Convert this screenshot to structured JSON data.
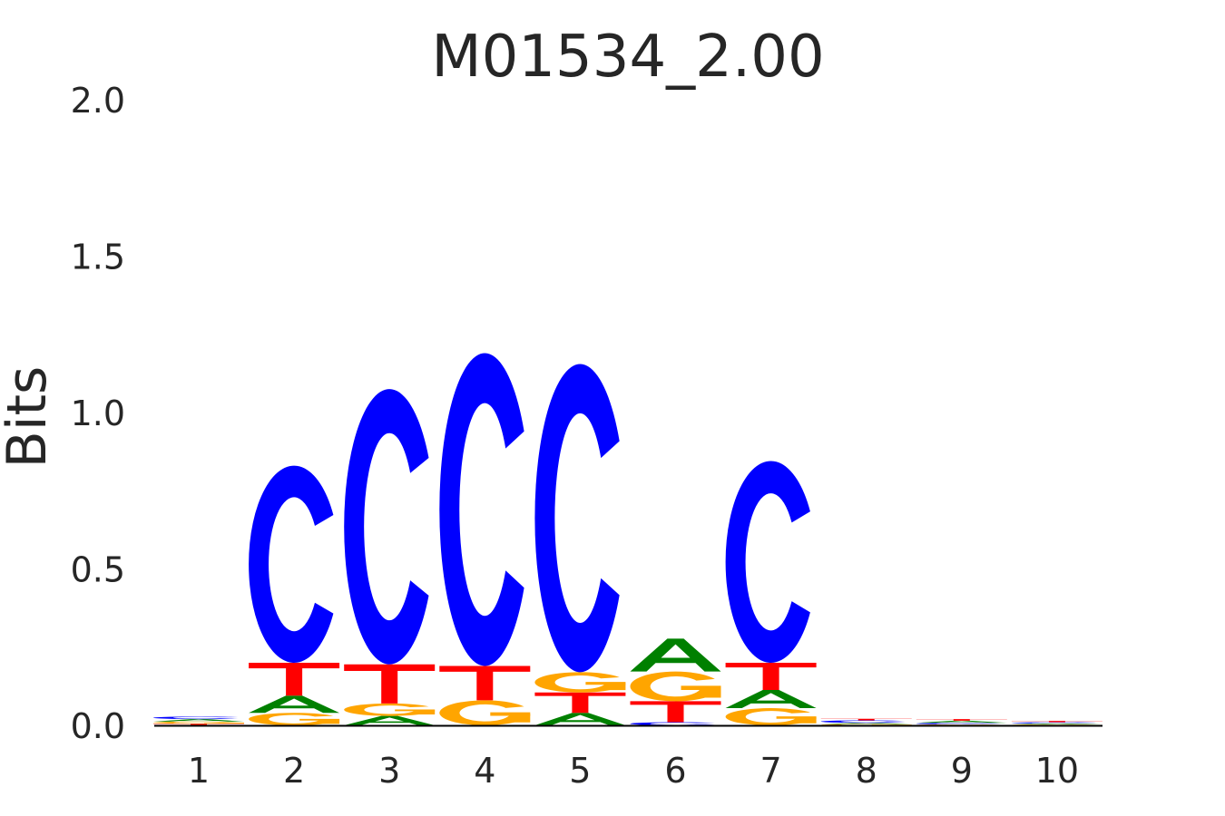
{
  "chart_data": {
    "type": "sequence-logo",
    "title": "M01534_2.00",
    "xlabel": "",
    "ylabel": "Bits",
    "ylim": [
      0,
      2.0
    ],
    "yticks": [
      "0.0",
      "0.5",
      "1.0",
      "1.5",
      "2.0"
    ],
    "xticks": [
      "1",
      "2",
      "3",
      "4",
      "5",
      "6",
      "7",
      "8",
      "9",
      "10"
    ],
    "colors": {
      "A": "#008000",
      "C": "#0000ff",
      "G": "#ffa500",
      "T": "#ff0000"
    },
    "positions": [
      {
        "pos": 1,
        "letters": [
          {
            "l": "T",
            "h": 0.005
          },
          {
            "l": "G",
            "h": 0.007
          },
          {
            "l": "A",
            "h": 0.008
          },
          {
            "l": "C",
            "h": 0.008
          }
        ]
      },
      {
        "pos": 2,
        "letters": [
          {
            "l": "G",
            "h": 0.04
          },
          {
            "l": "A",
            "h": 0.055
          },
          {
            "l": "T",
            "h": 0.105
          },
          {
            "l": "C",
            "h": 0.63
          }
        ]
      },
      {
        "pos": 3,
        "letters": [
          {
            "l": "A",
            "h": 0.03
          },
          {
            "l": "G",
            "h": 0.04
          },
          {
            "l": "T",
            "h": 0.125
          },
          {
            "l": "C",
            "h": 0.88
          }
        ]
      },
      {
        "pos": 4,
        "letters": [
          {
            "l": "G",
            "h": 0.08
          },
          {
            "l": "T",
            "h": 0.11
          },
          {
            "l": "C",
            "h": 1.0
          }
        ]
      },
      {
        "pos": 5,
        "letters": [
          {
            "l": "A",
            "h": 0.04
          },
          {
            "l": "T",
            "h": 0.065
          },
          {
            "l": "G",
            "h": 0.065
          },
          {
            "l": "C",
            "h": 0.985
          }
        ]
      },
      {
        "pos": 6,
        "letters": [
          {
            "l": "C",
            "h": 0.01
          },
          {
            "l": "T",
            "h": 0.067
          },
          {
            "l": "G",
            "h": 0.095
          },
          {
            "l": "A",
            "h": 0.105
          }
        ]
      },
      {
        "pos": 7,
        "letters": [
          {
            "l": "G",
            "h": 0.055
          },
          {
            "l": "A",
            "h": 0.058
          },
          {
            "l": "T",
            "h": 0.087
          },
          {
            "l": "C",
            "h": 0.645
          }
        ]
      },
      {
        "pos": 8,
        "letters": [
          {
            "l": "G",
            "h": 0.004
          },
          {
            "l": "A",
            "h": 0.004
          },
          {
            "l": "C",
            "h": 0.008
          },
          {
            "l": "T",
            "h": 0.005
          }
        ]
      },
      {
        "pos": 9,
        "letters": [
          {
            "l": "G",
            "h": 0.003
          },
          {
            "l": "C",
            "h": 0.005
          },
          {
            "l": "A",
            "h": 0.007
          },
          {
            "l": "T",
            "h": 0.005
          }
        ]
      },
      {
        "pos": 10,
        "letters": [
          {
            "l": "G",
            "h": 0.003
          },
          {
            "l": "A",
            "h": 0.003
          },
          {
            "l": "C",
            "h": 0.004
          },
          {
            "l": "T",
            "h": 0.004
          }
        ]
      }
    ]
  }
}
